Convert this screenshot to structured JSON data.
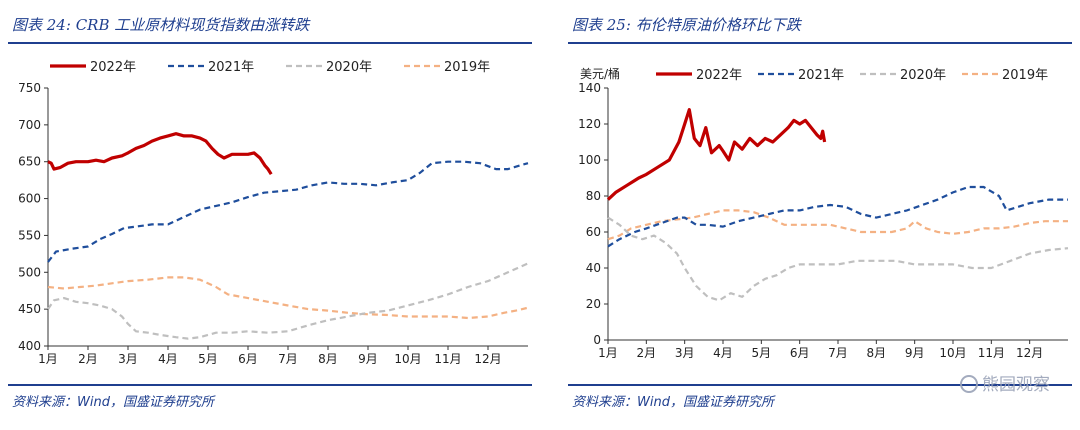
{
  "source_text": "资料来源：Wind，国盛证券研究所",
  "watermark": "熊园观察",
  "charts": [
    {
      "id": "crb",
      "fig_label": "图表 24:",
      "title": "CRB 工业原材料现货指数由涨转跌",
      "unit_label": "",
      "ylim": [
        400,
        750
      ],
      "yticks": [
        400,
        450,
        500,
        550,
        600,
        650,
        700,
        750
      ],
      "months": [
        "1月",
        "2月",
        "3月",
        "4月",
        "5月",
        "6月",
        "7月",
        "8月",
        "9月",
        "10月",
        "11月",
        "12月"
      ],
      "series": [
        {
          "name": "2022年",
          "color": "#c00000",
          "dash": "",
          "width": 3.2,
          "points": [
            [
              1,
              650
            ],
            [
              1.08,
              648
            ],
            [
              1.15,
              640
            ],
            [
              1.3,
              642
            ],
            [
              1.5,
              648
            ],
            [
              1.7,
              650
            ],
            [
              2,
              650
            ],
            [
              2.2,
              652
            ],
            [
              2.4,
              650
            ],
            [
              2.6,
              655
            ],
            [
              2.85,
              658
            ],
            [
              3,
              662
            ],
            [
              3.2,
              668
            ],
            [
              3.4,
              672
            ],
            [
              3.6,
              678
            ],
            [
              3.8,
              682
            ],
            [
              4,
              685
            ],
            [
              4.2,
              688
            ],
            [
              4.4,
              685
            ],
            [
              4.6,
              685
            ],
            [
              4.8,
              682
            ],
            [
              4.95,
              678
            ],
            [
              5.1,
              668
            ],
            [
              5.25,
              660
            ],
            [
              5.4,
              655
            ],
            [
              5.6,
              660
            ],
            [
              5.8,
              660
            ],
            [
              6,
              660
            ],
            [
              6.15,
              662
            ],
            [
              6.3,
              655
            ],
            [
              6.42,
              645
            ],
            [
              6.5,
              640
            ],
            [
              6.58,
              633
            ]
          ]
        },
        {
          "name": "2021年",
          "color": "#1f4e9c",
          "dash": "6,4",
          "width": 2.2,
          "points": [
            [
              1,
              514
            ],
            [
              1.2,
              528
            ],
            [
              1.6,
              532
            ],
            [
              2,
              535
            ],
            [
              2.3,
              545
            ],
            [
              2.6,
              552
            ],
            [
              2.9,
              560
            ],
            [
              3.2,
              562
            ],
            [
              3.6,
              565
            ],
            [
              4,
              565
            ],
            [
              4.4,
              575
            ],
            [
              4.8,
              585
            ],
            [
              5.2,
              590
            ],
            [
              5.6,
              595
            ],
            [
              6,
              602
            ],
            [
              6.4,
              608
            ],
            [
              6.8,
              610
            ],
            [
              7.2,
              612
            ],
            [
              7.6,
              618
            ],
            [
              8,
              622
            ],
            [
              8.4,
              620
            ],
            [
              8.8,
              620
            ],
            [
              9.2,
              618
            ],
            [
              9.6,
              622
            ],
            [
              10,
              625
            ],
            [
              10.3,
              635
            ],
            [
              10.6,
              648
            ],
            [
              11,
              650
            ],
            [
              11.4,
              650
            ],
            [
              11.8,
              648
            ],
            [
              12.2,
              640
            ],
            [
              12.5,
              640
            ],
            [
              12.8,
              645
            ],
            [
              13,
              648
            ]
          ]
        },
        {
          "name": "2020年",
          "color": "#bfbfbf",
          "dash": "6,4",
          "width": 2.2,
          "points": [
            [
              1,
              450
            ],
            [
              1.15,
              462
            ],
            [
              1.4,
              465
            ],
            [
              1.7,
              460
            ],
            [
              2,
              458
            ],
            [
              2.3,
              455
            ],
            [
              2.6,
              450
            ],
            [
              2.85,
              440
            ],
            [
              3,
              430
            ],
            [
              3.2,
              420
            ],
            [
              3.5,
              418
            ],
            [
              3.8,
              415
            ],
            [
              4.2,
              412
            ],
            [
              4.5,
              410
            ],
            [
              4.8,
              412
            ],
            [
              5.2,
              418
            ],
            [
              5.6,
              418
            ],
            [
              6,
              420
            ],
            [
              6.5,
              418
            ],
            [
              7,
              420
            ],
            [
              7.5,
              428
            ],
            [
              8,
              435
            ],
            [
              8.5,
              440
            ],
            [
              9,
              445
            ],
            [
              9.5,
              448
            ],
            [
              10,
              455
            ],
            [
              10.5,
              462
            ],
            [
              11,
              470
            ],
            [
              11.5,
              480
            ],
            [
              12,
              488
            ],
            [
              12.5,
              500
            ],
            [
              13,
              512
            ]
          ]
        },
        {
          "name": "2019年",
          "color": "#f4b183",
          "dash": "6,4",
          "width": 2.2,
          "points": [
            [
              1,
              480
            ],
            [
              1.4,
              478
            ],
            [
              1.8,
              480
            ],
            [
              2.2,
              482
            ],
            [
              2.6,
              485
            ],
            [
              3,
              488
            ],
            [
              3.5,
              490
            ],
            [
              4,
              493
            ],
            [
              4.4,
              493
            ],
            [
              4.8,
              490
            ],
            [
              5.2,
              480
            ],
            [
              5.5,
              470
            ],
            [
              6,
              465
            ],
            [
              6.5,
              460
            ],
            [
              7,
              455
            ],
            [
              7.5,
              450
            ],
            [
              8,
              448
            ],
            [
              8.5,
              445
            ],
            [
              9,
              443
            ],
            [
              9.5,
              442
            ],
            [
              10,
              440
            ],
            [
              10.5,
              440
            ],
            [
              11,
              440
            ],
            [
              11.5,
              438
            ],
            [
              12,
              440
            ],
            [
              12.4,
              445
            ],
            [
              12.7,
              448
            ],
            [
              13,
              452
            ]
          ]
        }
      ]
    },
    {
      "id": "brent",
      "fig_label": "图表 25:",
      "title": "布伦特原油价格环比下跌",
      "unit_label": "美元/桶",
      "ylim": [
        0,
        140
      ],
      "yticks": [
        0,
        20,
        40,
        60,
        80,
        100,
        120,
        140
      ],
      "months": [
        "1月",
        "2月",
        "3月",
        "4月",
        "5月",
        "6月",
        "7月",
        "8月",
        "9月",
        "10月",
        "11月",
        "12月"
      ],
      "series": [
        {
          "name": "2022年",
          "color": "#c00000",
          "dash": "",
          "width": 3.2,
          "points": [
            [
              1,
              78
            ],
            [
              1.2,
              82
            ],
            [
              1.5,
              86
            ],
            [
              1.8,
              90
            ],
            [
              2,
              92
            ],
            [
              2.3,
              96
            ],
            [
              2.6,
              100
            ],
            [
              2.85,
              110
            ],
            [
              3,
              120
            ],
            [
              3.12,
              128
            ],
            [
              3.25,
              112
            ],
            [
              3.4,
              108
            ],
            [
              3.55,
              118
            ],
            [
              3.7,
              104
            ],
            [
              3.9,
              108
            ],
            [
              4,
              105
            ],
            [
              4.15,
              100
            ],
            [
              4.3,
              110
            ],
            [
              4.5,
              106
            ],
            [
              4.7,
              112
            ],
            [
              4.9,
              108
            ],
            [
              5.1,
              112
            ],
            [
              5.3,
              110
            ],
            [
              5.5,
              114
            ],
            [
              5.7,
              118
            ],
            [
              5.85,
              122
            ],
            [
              6,
              120
            ],
            [
              6.15,
              122
            ],
            [
              6.3,
              118
            ],
            [
              6.45,
              114
            ],
            [
              6.55,
              112
            ],
            [
              6.6,
              116
            ],
            [
              6.65,
              110
            ]
          ]
        },
        {
          "name": "2021年",
          "color": "#1f4e9c",
          "dash": "6,4",
          "width": 2.2,
          "points": [
            [
              1,
              52
            ],
            [
              1.3,
              56
            ],
            [
              1.7,
              60
            ],
            [
              2,
              62
            ],
            [
              2.4,
              65
            ],
            [
              2.8,
              68
            ],
            [
              3,
              68
            ],
            [
              3.3,
              64
            ],
            [
              3.6,
              64
            ],
            [
              4,
              63
            ],
            [
              4.4,
              66
            ],
            [
              4.8,
              68
            ],
            [
              5.2,
              70
            ],
            [
              5.6,
              72
            ],
            [
              6,
              72
            ],
            [
              6.4,
              74
            ],
            [
              6.8,
              75
            ],
            [
              7.2,
              74
            ],
            [
              7.6,
              70
            ],
            [
              8,
              68
            ],
            [
              8.4,
              70
            ],
            [
              8.8,
              72
            ],
            [
              9.2,
              75
            ],
            [
              9.6,
              78
            ],
            [
              10,
              82
            ],
            [
              10.4,
              85
            ],
            [
              10.8,
              85
            ],
            [
              11.2,
              80
            ],
            [
              11.4,
              72
            ],
            [
              11.7,
              74
            ],
            [
              12,
              76
            ],
            [
              12.5,
              78
            ],
            [
              13,
              78
            ]
          ]
        },
        {
          "name": "2020年",
          "color": "#bfbfbf",
          "dash": "6,4",
          "width": 2.2,
          "points": [
            [
              1,
              68
            ],
            [
              1.3,
              64
            ],
            [
              1.6,
              58
            ],
            [
              1.9,
              56
            ],
            [
              2.2,
              58
            ],
            [
              2.5,
              54
            ],
            [
              2.8,
              48
            ],
            [
              3,
              40
            ],
            [
              3.3,
              30
            ],
            [
              3.6,
              24
            ],
            [
              3.9,
              22
            ],
            [
              4.2,
              26
            ],
            [
              4.5,
              24
            ],
            [
              4.8,
              30
            ],
            [
              5.1,
              34
            ],
            [
              5.4,
              36
            ],
            [
              5.7,
              40
            ],
            [
              6,
              42
            ],
            [
              6.5,
              42
            ],
            [
              7,
              42
            ],
            [
              7.5,
              44
            ],
            [
              8,
              44
            ],
            [
              8.5,
              44
            ],
            [
              9,
              42
            ],
            [
              9.5,
              42
            ],
            [
              10,
              42
            ],
            [
              10.5,
              40
            ],
            [
              11,
              40
            ],
            [
              11.5,
              44
            ],
            [
              12,
              48
            ],
            [
              12.5,
              50
            ],
            [
              13,
              51
            ]
          ]
        },
        {
          "name": "2019年",
          "color": "#f4b183",
          "dash": "6,4",
          "width": 2.2,
          "points": [
            [
              1,
              56
            ],
            [
              1.3,
              58
            ],
            [
              1.6,
              62
            ],
            [
              2,
              64
            ],
            [
              2.4,
              66
            ],
            [
              2.8,
              67
            ],
            [
              3.2,
              68
            ],
            [
              3.6,
              70
            ],
            [
              4,
              72
            ],
            [
              4.4,
              72
            ],
            [
              4.8,
              71
            ],
            [
              5.2,
              68
            ],
            [
              5.6,
              64
            ],
            [
              6,
              64
            ],
            [
              6.4,
              64
            ],
            [
              6.8,
              64
            ],
            [
              7.2,
              62
            ],
            [
              7.6,
              60
            ],
            [
              8,
              60
            ],
            [
              8.4,
              60
            ],
            [
              8.8,
              62
            ],
            [
              9,
              66
            ],
            [
              9.3,
              62
            ],
            [
              9.6,
              60
            ],
            [
              10,
              59
            ],
            [
              10.4,
              60
            ],
            [
              10.8,
              62
            ],
            [
              11.2,
              62
            ],
            [
              11.6,
              63
            ],
            [
              12,
              65
            ],
            [
              12.4,
              66
            ],
            [
              13,
              66
            ]
          ]
        }
      ]
    }
  ]
}
